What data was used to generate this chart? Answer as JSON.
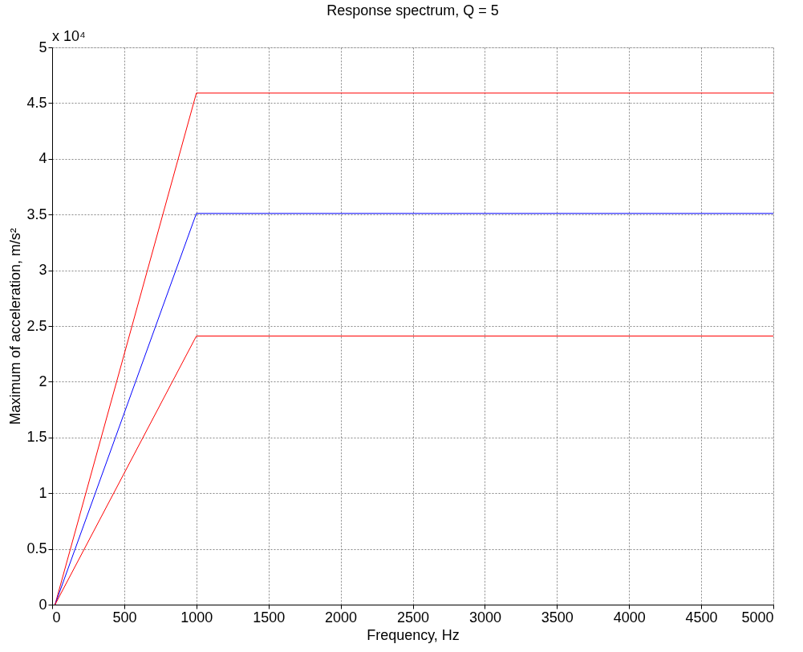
{
  "chart_data": {
    "type": "line",
    "title": "Response spectrum, Q = 5",
    "xlabel": "Frequency, Hz",
    "ylabel": "Maximum of acceleration, m/s²",
    "annotations": [
      "x 10⁴"
    ],
    "series": [
      {
        "color": "#ff0000",
        "x": [
          20,
          1000,
          5000
        ],
        "values": [
          0,
          4.59,
          4.59
        ]
      },
      {
        "color": "#0000ff",
        "x": [
          20,
          1000,
          5000
        ],
        "values": [
          0,
          3.51,
          3.51
        ]
      },
      {
        "color": "#ff0000",
        "x": [
          20,
          1000,
          5000
        ],
        "values": [
          0,
          2.41,
          2.41
        ]
      }
    ],
    "xlim": [
      0,
      5000
    ],
    "xticks": [
      0,
      500,
      1000,
      1500,
      2000,
      2500,
      3000,
      3500,
      4000,
      4500,
      5000
    ],
    "ylim": [
      0,
      5
    ],
    "yticks": [
      0,
      0.5,
      1,
      1.5,
      2,
      2.5,
      3,
      3.5,
      4,
      4.5,
      5
    ],
    "grid": true,
    "line_style": "solid",
    "marker": "none"
  }
}
